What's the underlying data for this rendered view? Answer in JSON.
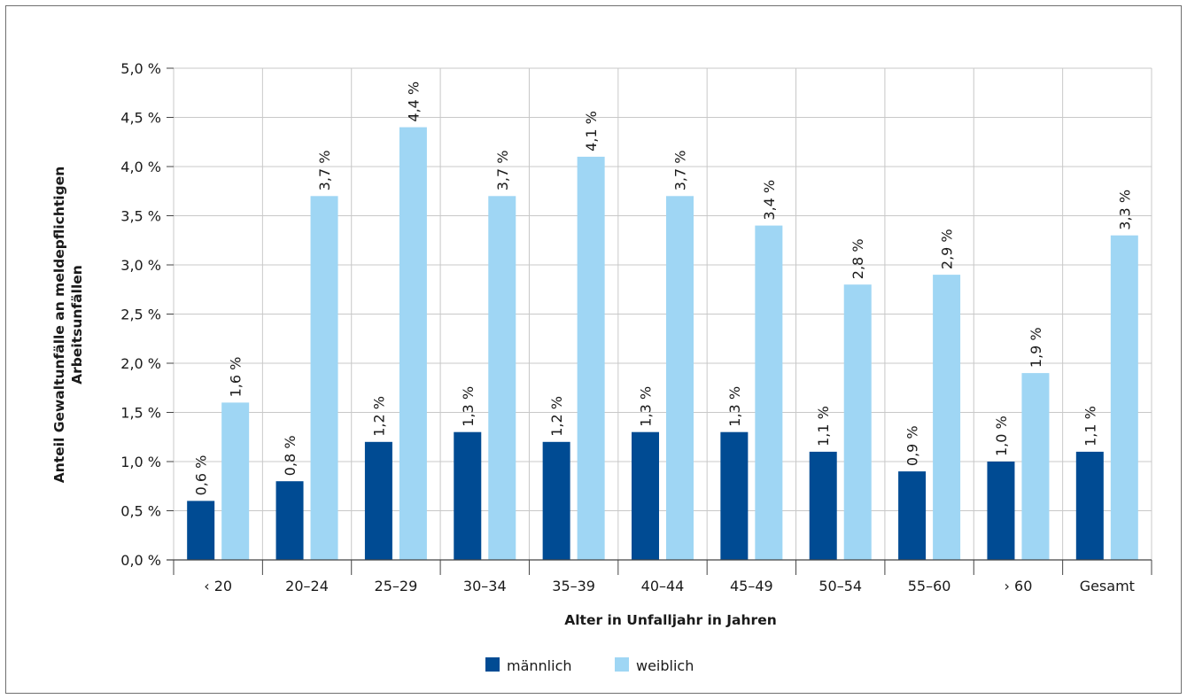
{
  "chart_data": {
    "type": "bar",
    "categories": [
      "‹ 20",
      "20–24",
      "25–29",
      "30–34",
      "35–39",
      "40–44",
      "45–49",
      "50–54",
      "55–60",
      "› 60",
      "Gesamt"
    ],
    "series": [
      {
        "name": "männlich",
        "color": "#004b93",
        "values": [
          0.6,
          0.8,
          1.2,
          1.3,
          1.2,
          1.3,
          1.3,
          1.1,
          0.9,
          1.0,
          1.1
        ],
        "labels": [
          "0,6 %",
          "0,8 %",
          "1,2 %",
          "1,3 %",
          "1,2 %",
          "1,3 %",
          "1,3 %",
          "1,1 %",
          "0,9 %",
          "1,0 %",
          "1,1 %"
        ]
      },
      {
        "name": "weiblich",
        "color": "#9fd6f4",
        "values": [
          1.6,
          3.7,
          4.4,
          3.7,
          4.1,
          3.7,
          3.4,
          2.8,
          2.9,
          1.9,
          3.3
        ],
        "labels": [
          "1,6 %",
          "3,7 %",
          "4,4 %",
          "3,7 %",
          "4,1 %",
          "3,7 %",
          "3,4 %",
          "2,8 %",
          "2,9 %",
          "1,9 %",
          "3,3 %"
        ]
      }
    ],
    "ylim": [
      0,
      5.0
    ],
    "yticks": [
      0.0,
      0.5,
      1.0,
      1.5,
      2.0,
      2.5,
      3.0,
      3.5,
      4.0,
      4.5,
      5.0
    ],
    "ytick_labels": [
      "0,0 %",
      "0,5 %",
      "1,0 %",
      "1,5 %",
      "2,0 %",
      "2,5 %",
      "3,0 %",
      "3,5 %",
      "4,0 %",
      "4,5 %",
      "5,0 %"
    ],
    "ylabel_lines": [
      "Anteil Gewaltunfälle an meldepflichtigen",
      "Arbeitsunfällen"
    ],
    "xlabel": "Alter in Unfalljahr in Jahren",
    "grid": true,
    "legend_position": "bottom-center",
    "gridline_color": "#c8c8c8",
    "axis_color": "#444444"
  }
}
